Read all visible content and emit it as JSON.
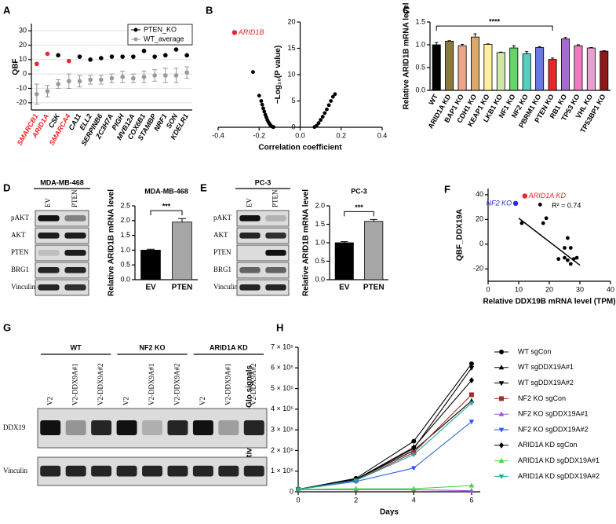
{
  "panel_labels": [
    "A",
    "B",
    "C",
    "D",
    "E",
    "F",
    "G",
    "H"
  ],
  "chart_data": [
    {
      "type": "dot",
      "ylabel": "QBF",
      "categories": [
        "SMARCB1",
        "ARID1A",
        "CSK",
        "SMARCA4",
        "CA11",
        "ELL2",
        "SERPINB6",
        "ZC3H7A",
        "PIGH",
        "MVB12A",
        "COX6B1",
        "STAMBP",
        "NRF1",
        "SON",
        "KDELR1"
      ],
      "label_colors": [
        "#e8262a",
        "#e8262a",
        "#000000",
        "#e8262a",
        "#000000",
        "#000000",
        "#000000",
        "#000000",
        "#000000",
        "#000000",
        "#000000",
        "#000000",
        "#000000",
        "#000000",
        "#000000"
      ],
      "ylim": [
        -25,
        35
      ],
      "yticks": [
        -20,
        -10,
        0,
        10,
        20,
        30
      ],
      "grid": true,
      "legend": "top-right",
      "series": [
        {
          "name": "PTEN_KO",
          "color": "#000000",
          "point_colors": [
            "#e8262a",
            "#e8262a",
            "#000000",
            "#e8262a",
            "#000000",
            "#000000",
            "#000000",
            "#000000",
            "#000000",
            "#000000",
            "#000000",
            "#000000",
            "#000000",
            "#000000",
            "#000000"
          ],
          "values": [
            7,
            14,
            13,
            9,
            12,
            10,
            11,
            12,
            12,
            12,
            16,
            12,
            13,
            17,
            13
          ]
        },
        {
          "name": "WT_average",
          "color": "#999999",
          "values": [
            -14,
            -12,
            -7,
            -5,
            -5,
            -4,
            -4,
            -3,
            -2,
            -3,
            -2,
            -1,
            -1,
            -1,
            1
          ],
          "errors": [
            7,
            4,
            3,
            5,
            4,
            3,
            3,
            3,
            4,
            3,
            4,
            4,
            5,
            5,
            4
          ]
        }
      ]
    },
    {
      "type": "scatter",
      "xlabel": "Correlation coefficient",
      "ylabel": "−Log₁₀(P value)",
      "xlim": [
        -0.4,
        0.4
      ],
      "xticks": [
        -0.4,
        -0.2,
        {
          "value": 0,
          "label": "0.0"
        },
        0.2,
        0.4
      ],
      "ylim": [
        0,
        20
      ],
      "yticks": [
        0,
        5,
        10,
        15,
        20
      ],
      "yaxis_at_zero": true,
      "color": "#000000",
      "x": [
        -0.32,
        -0.23,
        -0.2,
        -0.19,
        -0.185,
        -0.18,
        -0.175,
        -0.17,
        -0.165,
        -0.16,
        -0.155,
        -0.15,
        -0.145,
        -0.14,
        -0.135,
        -0.13,
        0.07,
        0.08,
        0.09,
        0.1,
        0.11,
        0.12,
        0.13,
        0.14,
        0.15,
        0.16,
        0.17
      ],
      "values": [
        18,
        10.5,
        6,
        5,
        4.3,
        3.6,
        3,
        2.4,
        1.9,
        1.4,
        1.0,
        0.7,
        0.4,
        0.2,
        0.1,
        0.05,
        0.05,
        0.3,
        0.8,
        1.4,
        2,
        2.7,
        3.4,
        4.2,
        5,
        5.8,
        6.3
      ],
      "point_labels": [
        "ARID1B",
        null,
        null,
        null,
        null,
        null,
        null,
        null,
        null,
        null,
        null,
        null,
        null,
        null,
        null,
        null,
        null,
        null,
        null,
        null,
        null,
        null,
        null,
        null,
        null,
        null,
        null
      ],
      "point_label_colors": [
        "#e8262a",
        null,
        null,
        null,
        null,
        null,
        null,
        null,
        null,
        null,
        null,
        null,
        null,
        null,
        null,
        null,
        null,
        null,
        null,
        null,
        null,
        null,
        null,
        null,
        null,
        null,
        null
      ]
    },
    {
      "type": "bar",
      "ylabel": "Relative ARID1B mRNA level",
      "categories": [
        "WT",
        "ARID1A KD",
        "BAP1 KO",
        "CDH1 KO",
        "KEAP1 KO",
        "LKB1 KO",
        "NF1 KO",
        "NF2 KO",
        "PBRM1 KO",
        "PTEN KO",
        "RB1 KO",
        "TP53 KO",
        "VHL KO",
        "TP53BP1 KO"
      ],
      "values": [
        1.0,
        1.08,
        0.98,
        1.17,
        1.01,
        0.83,
        0.93,
        0.8,
        0.94,
        0.68,
        1.13,
        0.98,
        0.93,
        0.86
      ],
      "errors": [
        0.05,
        0.01,
        0.03,
        0.07,
        0.01,
        0.01,
        0.05,
        0.05,
        0.02,
        0.03,
        0.03,
        0.02,
        0.01,
        0.01
      ],
      "colors": [
        "#000000",
        "#8a7a3a",
        "#f0a48c",
        "#d9a86a",
        "#fff0a0",
        "#cde8a8",
        "#66d466",
        "#55cfc0",
        "#6a78e0",
        "#e8262a",
        "#a56cd0",
        "#f07ac0",
        "#e8a0d0",
        "#8b1a1a"
      ],
      "ylim": [
        0,
        1.5
      ],
      "yticks": [
        {
          "value": 0,
          "label": "0.0"
        },
        0.5,
        {
          "value": 1,
          "label": "1.0"
        },
        1.5
      ],
      "significance": {
        "label": "****",
        "between": [
          "WT",
          "PTEN KO"
        ]
      }
    },
    {
      "type": "bar",
      "title": "MDA-MB-468",
      "ylabel": "Relative ARID1B mRNA level",
      "categories": [
        "EV",
        "PTEN"
      ],
      "values": [
        1.0,
        1.95
      ],
      "errors": [
        0.03,
        0.12
      ],
      "colors": [
        "#000000",
        "#a6a6a6"
      ],
      "ylim": [
        0,
        2.5
      ],
      "yticks": [
        {
          "value": 0,
          "label": "0.0"
        },
        0.5,
        {
          "value": 1,
          "label": "1.0"
        },
        1.5,
        {
          "value": 2,
          "label": "2.0"
        },
        2.5
      ],
      "significance": {
        "label": "***",
        "between": [
          "EV",
          "PTEN"
        ]
      }
    },
    {
      "type": "bar",
      "title": "PC-3",
      "ylabel": "Relative ARID1B mRNA level",
      "categories": [
        "EV",
        "PTEN"
      ],
      "values": [
        1.0,
        1.58
      ],
      "errors": [
        0.03,
        0.05
      ],
      "colors": [
        "#000000",
        "#a6a6a6"
      ],
      "ylim": [
        0,
        2.0
      ],
      "yticks": [
        {
          "value": 0,
          "label": "0.0"
        },
        0.5,
        {
          "value": 1,
          "label": "1.0"
        },
        1.5,
        {
          "value": 2,
          "label": "2.0"
        }
      ],
      "significance": {
        "label": "***",
        "between": [
          "EV",
          "PTEN"
        ]
      }
    },
    {
      "type": "scatter",
      "xlabel": "Relative DDX19B mRNA level (TPM)",
      "ylabel": "QBF_DDX19A",
      "xlim": [
        0,
        40
      ],
      "xticks": [
        0,
        10,
        20,
        30,
        40
      ],
      "ylim": [
        -30,
        45
      ],
      "yticks": [
        -20,
        0,
        20,
        40
      ],
      "color": "#000000",
      "x": [
        12,
        9,
        11,
        17,
        19,
        18,
        26,
        25,
        27,
        23,
        25,
        26,
        27,
        29,
        28
      ],
      "values": [
        39,
        33,
        17,
        32,
        21,
        17,
        5,
        -3,
        -3,
        -12,
        -11,
        -13,
        -16,
        -11,
        -12
      ],
      "point_labels": [
        "ARID1A KD",
        "NF2 KO",
        null,
        null,
        null,
        null,
        null,
        null,
        null,
        null,
        null,
        null,
        null,
        null,
        null
      ],
      "point_label_colors": [
        "#e8262a",
        "#2a2ad6",
        null,
        null,
        null,
        null,
        null,
        null,
        null,
        null,
        null,
        null,
        null,
        null,
        null
      ],
      "annotation": "R² = 0.74",
      "fit": {
        "x": [
          10,
          30
        ],
        "y": [
          21,
          -17
        ]
      }
    },
    {
      "type": "line",
      "xlabel": "Days",
      "ylabel": "Relative CellTiter-Glo signals",
      "x": [
        0,
        2,
        4,
        6
      ],
      "xlim": [
        0,
        6.3
      ],
      "xticks": [
        0,
        2,
        4,
        6
      ],
      "ylim": [
        0,
        700000
      ],
      "yticks": [
        0,
        {
          "value": 100000,
          "label": "1 × 10⁵"
        },
        {
          "value": 200000,
          "label": "2 × 10⁵"
        },
        {
          "value": 300000,
          "label": "3 × 10⁵"
        },
        {
          "value": 400000,
          "label": "4 × 10⁵"
        },
        {
          "value": 500000,
          "label": "5 × 10⁵"
        },
        {
          "value": 600000,
          "label": "6 × 10⁵"
        },
        {
          "value": 700000,
          "label": "7 × 10⁵"
        }
      ],
      "legend": "right",
      "series": [
        {
          "name": "WT sgCon",
          "color": "#000000",
          "marker": "circle",
          "values": [
            12000,
            65000,
            245000,
            620000
          ]
        },
        {
          "name": "WT sgDDX19A#1",
          "color": "#000000",
          "marker": "triangle",
          "values": [
            12000,
            60000,
            200000,
            440000
          ]
        },
        {
          "name": "WT sgDDX19A#2",
          "color": "#000000",
          "marker": "triangle-down",
          "values": [
            12000,
            60000,
            210000,
            600000
          ]
        },
        {
          "name": "NF2 KO sgCon",
          "color": "#a0302a",
          "marker": "square",
          "values": [
            12000,
            55000,
            190000,
            470000
          ]
        },
        {
          "name": "NF2 KO sgDDX19A#1",
          "color": "#9b4fd6",
          "marker": "triangle",
          "values": [
            10000,
            10000,
            10000,
            5000
          ]
        },
        {
          "name": "NF2 KO sgDDX19A#2",
          "color": "#2a5ce8",
          "marker": "triangle-down",
          "values": [
            12000,
            50000,
            115000,
            340000
          ]
        },
        {
          "name": "ARID1A KD sgCon",
          "color": "#000000",
          "marker": "diamond",
          "values": [
            12000,
            60000,
            215000,
            540000
          ]
        },
        {
          "name": "ARID1A KD sgDDX19A#1",
          "color": "#44d444",
          "marker": "triangle",
          "values": [
            12000,
            15000,
            15000,
            30000
          ]
        },
        {
          "name": "ARID1A KD sgDDX19A#2",
          "color": "#2aa8a0",
          "marker": "triangle-down",
          "values": [
            12000,
            55000,
            180000,
            430000
          ]
        }
      ]
    }
  ],
  "blots": [
    {
      "title": "MDA-MB-468",
      "lanes": [
        "EV",
        "PTEN"
      ],
      "rows": [
        "pAKT",
        "AKT",
        "PTEN",
        "BRG1",
        "Vinculin"
      ]
    },
    {
      "title": "PC-3",
      "lanes": [
        "EV",
        "PTEN"
      ],
      "rows": [
        "pAKT",
        "AKT",
        "PTEN",
        "BRG1",
        "Vinculin"
      ]
    },
    {
      "groups": [
        {
          "name": "WT",
          "lanes": [
            "V2",
            "V2-DDX9A#1",
            "V2-DDX9A#2"
          ]
        },
        {
          "name": "NF2 KO",
          "lanes": [
            "V2",
            "V2-DDX9A#1",
            "V2-DDX9A#2"
          ]
        },
        {
          "name": "ARID1A KD",
          "lanes": [
            "V2",
            "V2-DDX9A#1",
            "V2-DDX9A#2"
          ]
        }
      ],
      "rows": [
        "DDX19",
        "Vinculin"
      ]
    }
  ]
}
